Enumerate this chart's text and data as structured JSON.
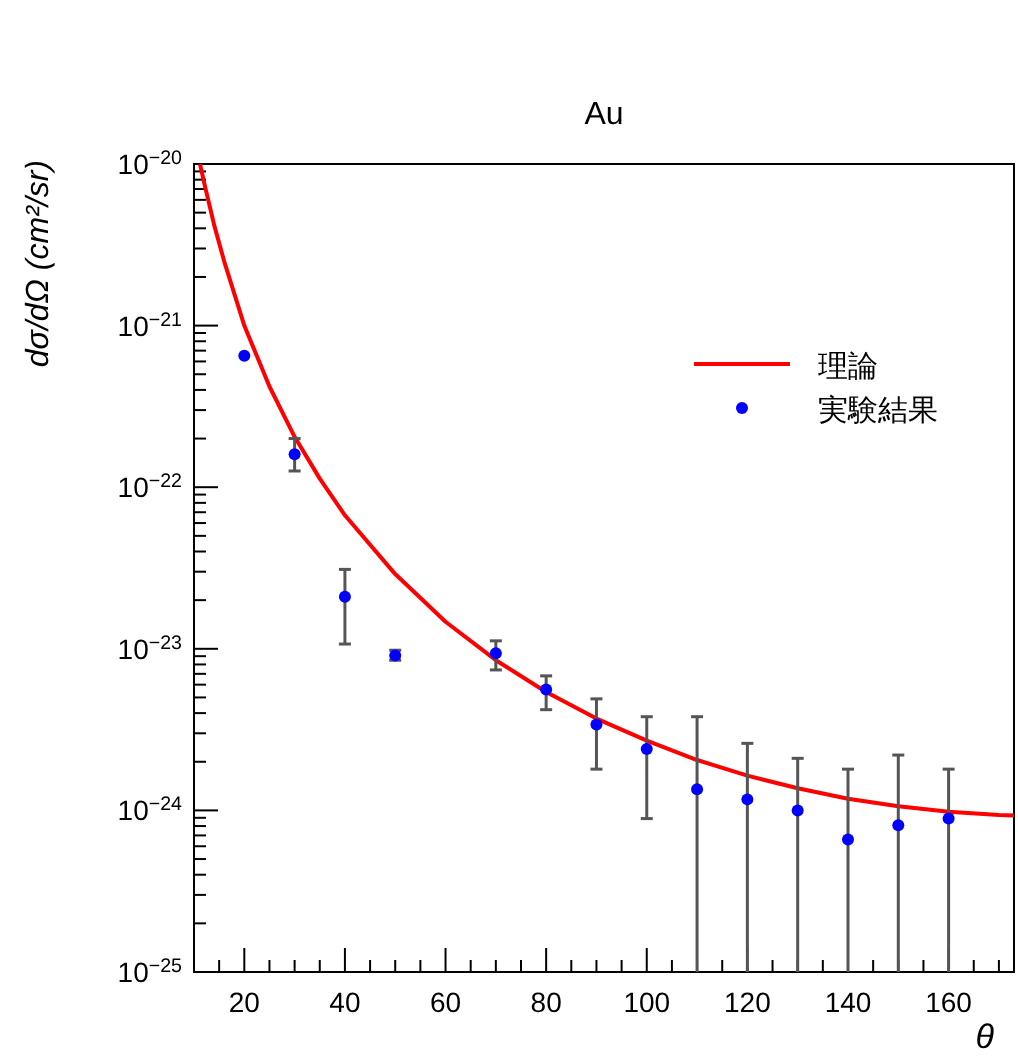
{
  "chart_data": {
    "type": "scatter",
    "title": "Au",
    "xlabel": "θ",
    "ylabel": "dσ/dΩ  (cm²/sr)",
    "log": true,
    "xlim": [
      10,
      173
    ],
    "xticks": [
      20,
      40,
      60,
      80,
      100,
      120,
      140,
      160
    ],
    "ylim": [
      1e-25,
      1e-20
    ],
    "yticks": [
      {
        "value": 1e-25,
        "label": "10$^{−25}$"
      },
      {
        "value": 1e-24,
        "label": "10$^{−24}$"
      },
      {
        "value": 1e-23,
        "label": "10$^{−23}$"
      },
      {
        "value": 1e-22,
        "label": "10$^{−22}$"
      },
      {
        "value": 1e-21,
        "label": "10$^{−21}$"
      },
      {
        "value": 1e-20,
        "label": "10$^{−20}$"
      }
    ],
    "legend": "top right",
    "series": [
      {
        "name": "理論",
        "type": "line",
        "line_style": "solid",
        "color": "#ff0000",
        "x": [
          11.2,
          12,
          14,
          16,
          20,
          25,
          30,
          35,
          40,
          50,
          60,
          70,
          80,
          90,
          100,
          110,
          120,
          130,
          140,
          150,
          160,
          170,
          173
        ],
        "values": [
          1e-20,
          7.7e-21,
          4.2e-21,
          2.5e-21,
          1e-21,
          4.2e-22,
          2.05e-22,
          1.13e-22,
          6.7e-23,
          2.9e-23,
          1.47e-23,
          8.5e-24,
          5.4e-24,
          3.7e-24,
          2.7e-24,
          2.05e-24,
          1.64e-24,
          1.37e-24,
          1.18e-24,
          1.06e-24,
          9.8e-25,
          9.35e-25,
          9.3e-25
        ]
      },
      {
        "name": "実験結果",
        "marker": "circle",
        "color": "#0000ff",
        "x": [
          20,
          30,
          40,
          50,
          70,
          80,
          90,
          100,
          110,
          120,
          130,
          140,
          150,
          160
        ],
        "values": [
          6.5e-22,
          1.6e-22,
          2.1e-23,
          9.1e-24,
          9.4e-24,
          5.6e-24,
          3.4e-24,
          2.4e-24,
          1.35e-24,
          1.17e-24,
          1e-24,
          6.6e-25,
          8.1e-25,
          8.9e-25
        ],
        "errors": [
          null,
          [
            1.26e-22,
            2e-22
          ],
          [
            1.07e-23,
            3.1e-23
          ],
          [
            8.5e-24,
            9.8e-24
          ],
          [
            7.4e-24,
            1.12e-23
          ],
          [
            4.2e-24,
            6.8e-24
          ],
          [
            1.8e-24,
            4.9e-24
          ],
          [
            8.9e-25,
            3.8e-24
          ],
          [
            1e-25,
            3.8e-24
          ],
          [
            1e-25,
            2.6e-24
          ],
          [
            1e-25,
            2.1e-24
          ],
          [
            1e-25,
            1.8e-24
          ],
          [
            1e-25,
            2.2e-24
          ],
          [
            1e-25,
            1.8e-24
          ]
        ]
      }
    ]
  }
}
